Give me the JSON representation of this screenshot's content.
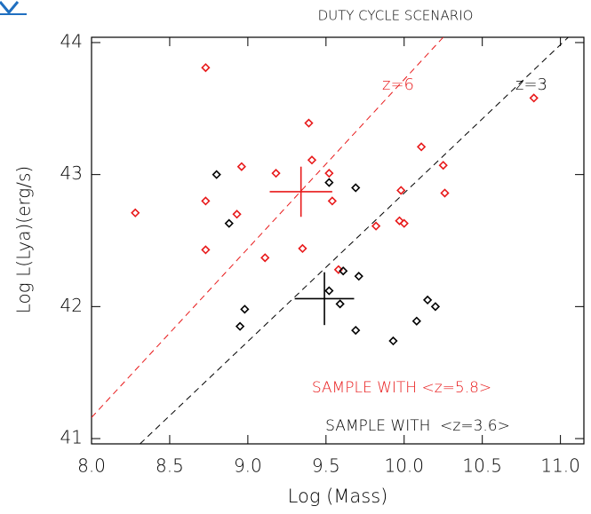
{
  "chart_data": {
    "type": "scatter",
    "title": "DUTY CYCLE SCENARIO",
    "xlabel": "Log (Mass)",
    "ylabel": "Log L(Lya)(erg/s)",
    "xlim": [
      8.0,
      11.15
    ],
    "ylim": [
      40.96,
      44.04
    ],
    "xticks": [
      {
        "value": 8.0,
        "label": "8.0"
      },
      8.5,
      {
        "value": 9.0,
        "label": "9.0"
      },
      9.5,
      {
        "value": 10.0,
        "label": "10.0"
      },
      10.5,
      {
        "value": 11.0,
        "label": "11.0"
      }
    ],
    "yticks": [
      41,
      42,
      43,
      44
    ],
    "series": [
      {
        "name": "SAMPLE WITH <z=5.8>",
        "color": "#e8191a",
        "x": [
          8.28,
          8.73,
          8.73,
          8.73,
          8.93,
          8.96,
          9.11,
          9.18,
          9.35,
          9.39,
          9.41,
          9.52,
          9.54,
          9.58,
          9.82,
          9.98,
          9.97,
          10.0,
          10.11,
          10.25,
          10.26,
          10.83
        ],
        "values": [
          42.71,
          43.81,
          42.8,
          42.43,
          42.7,
          43.06,
          42.37,
          43.01,
          42.44,
          43.39,
          43.11,
          43.01,
          42.8,
          42.28,
          42.61,
          42.88,
          42.65,
          42.63,
          43.21,
          43.07,
          42.86,
          43.58
        ]
      },
      {
        "name": "SAMPLE WITH  <z=3.6>",
        "color": "#000000",
        "x": [
          8.8,
          8.88,
          8.98,
          8.95,
          9.52,
          9.69,
          9.61,
          9.52,
          9.59,
          9.71,
          9.69,
          9.93,
          10.08,
          10.15,
          10.2
        ],
        "values": [
          43.0,
          42.63,
          41.98,
          41.85,
          42.94,
          42.9,
          42.27,
          42.12,
          42.02,
          42.23,
          41.82,
          41.74,
          41.89,
          42.05,
          42.0
        ]
      }
    ],
    "errorbars": [
      {
        "color": "#e8191a",
        "x": 9.34,
        "y": 42.87,
        "xerr": 0.2,
        "yerr": 0.19
      },
      {
        "color": "#000000",
        "x": 9.49,
        "y": 42.06,
        "xerr": 0.19,
        "yerr": 0.2
      }
    ],
    "lines": [
      {
        "name": "z=6",
        "color": "#e8191a",
        "x": [
          8.0,
          10.25
        ],
        "y": [
          41.16,
          44.04
        ]
      },
      {
        "name": "z=3",
        "color": "#000000",
        "x": [
          8.31,
          11.05
        ],
        "y": [
          40.96,
          44.04
        ]
      }
    ]
  }
}
